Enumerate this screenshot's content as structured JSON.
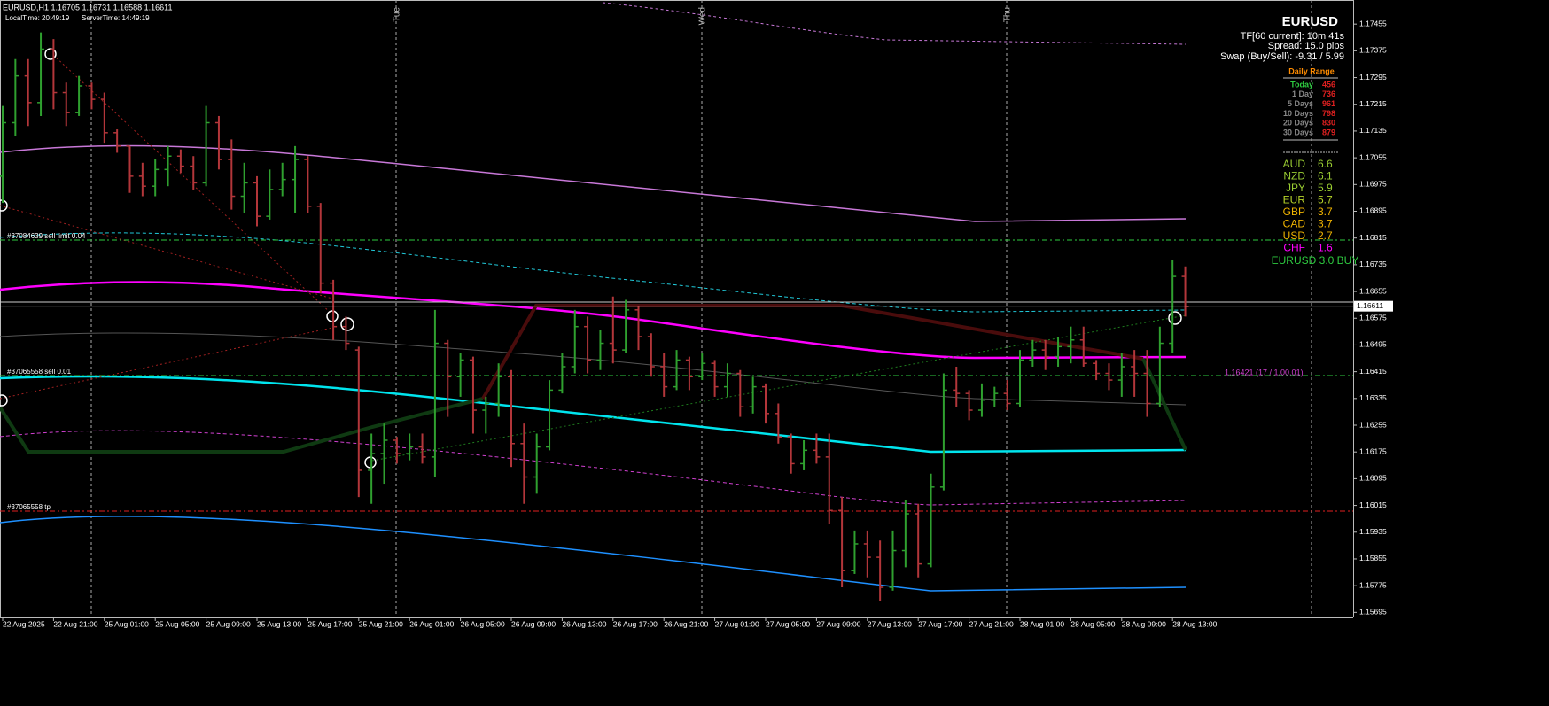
{
  "header": {
    "symbol_line": "EURUSD,H1  1.16705 1.16731 1.16588 1.16611",
    "local_time": "LocalTime: 20:49:19",
    "server_time": "ServerTime: 14:49:19"
  },
  "day_labels": [
    "Tue",
    "Wed",
    "Thu"
  ],
  "chart": {
    "type": "bar",
    "ylim": [
      1.1568,
      1.17527
    ],
    "yticks": [
      1.17455,
      1.17375,
      1.17295,
      1.17215,
      1.17135,
      1.17055,
      1.16975,
      1.16895,
      1.16815,
      1.16735,
      1.16655,
      1.16575,
      1.16495,
      1.16415,
      1.16335,
      1.16255,
      1.16175,
      1.16095,
      1.16015,
      1.15935,
      1.15855,
      1.15775,
      1.15695
    ],
    "time_labels": [
      "22 Aug 2025",
      "22 Aug 21:00",
      "25 Aug 01:00",
      "25 Aug 05:00",
      "25 Aug 09:00",
      "25 Aug 13:00",
      "25 Aug 17:00",
      "25 Aug 21:00",
      "26 Aug 01:00",
      "26 Aug 05:00",
      "26 Aug 09:00",
      "26 Aug 13:00",
      "26 Aug 17:00",
      "26 Aug 21:00",
      "27 Aug 01:00",
      "27 Aug 05:00",
      "27 Aug 09:00",
      "27 Aug 13:00",
      "27 Aug 17:00",
      "27 Aug 21:00",
      "28 Aug 01:00",
      "28 Aug 05:00",
      "28 Aug 09:00",
      "28 Aug 13:00"
    ],
    "up_color": "#2fa02f",
    "down_color": "#b3363a",
    "current_price": 1.16611,
    "bars": [
      [
        1.17,
        1.1721,
        1.1692,
        1.1716
      ],
      [
        1.1716,
        1.1735,
        1.1712,
        1.173
      ],
      [
        1.173,
        1.1735,
        1.1715,
        1.1722
      ],
      [
        1.1722,
        1.1743,
        1.1718,
        1.1738
      ],
      [
        1.1738,
        1.1741,
        1.172,
        1.1725
      ],
      [
        1.1725,
        1.1728,
        1.1715,
        1.1719
      ],
      [
        1.1719,
        1.173,
        1.1718,
        1.1727
      ],
      [
        1.1727,
        1.1728,
        1.172,
        1.1723
      ],
      [
        1.1723,
        1.1725,
        1.171,
        1.1713
      ],
      [
        1.1713,
        1.1714,
        1.1707,
        1.1709
      ],
      [
        1.1709,
        1.1709,
        1.1695,
        1.17
      ],
      [
        1.17,
        1.1704,
        1.1694,
        1.1697
      ],
      [
        1.1697,
        1.1705,
        1.1694,
        1.1702
      ],
      [
        1.1702,
        1.1709,
        1.1697,
        1.1706
      ],
      [
        1.1706,
        1.1708,
        1.1701,
        1.1703
      ],
      [
        1.1703,
        1.1706,
        1.1696,
        1.1698
      ],
      [
        1.1698,
        1.1721,
        1.1697,
        1.1716
      ],
      [
        1.1716,
        1.1718,
        1.1702,
        1.1705
      ],
      [
        1.1705,
        1.1711,
        1.169,
        1.1694
      ],
      [
        1.1694,
        1.1704,
        1.1689,
        1.1698
      ],
      [
        1.1698,
        1.17,
        1.1685,
        1.1688
      ],
      [
        1.1688,
        1.1702,
        1.1687,
        1.1696
      ],
      [
        1.1696,
        1.1704,
        1.1694,
        1.1699
      ],
      [
        1.1699,
        1.1709,
        1.1689,
        1.1705
      ],
      [
        1.1705,
        1.1706,
        1.1689,
        1.1691
      ],
      [
        1.1691,
        1.1692,
        1.1665,
        1.1668
      ],
      [
        1.1668,
        1.1669,
        1.1651,
        1.1655
      ],
      [
        1.1655,
        1.1658,
        1.1648,
        1.165
      ],
      [
        1.1648,
        1.1649,
        1.1604,
        1.1612
      ],
      [
        1.1612,
        1.1623,
        1.1602,
        1.1617
      ],
      [
        1.1617,
        1.1626,
        1.1608,
        1.1621
      ],
      [
        1.1621,
        1.1622,
        1.1614,
        1.1617
      ],
      [
        1.1617,
        1.1623,
        1.1615,
        1.1619
      ],
      [
        1.1619,
        1.1623,
        1.1614,
        1.1616
      ],
      [
        1.1616,
        1.166,
        1.161,
        1.165
      ],
      [
        1.165,
        1.1651,
        1.1628,
        1.164
      ],
      [
        1.164,
        1.1647,
        1.1634,
        1.1645
      ],
      [
        1.1645,
        1.1646,
        1.1623,
        1.163
      ],
      [
        1.163,
        1.1634,
        1.1623,
        1.1632
      ],
      [
        1.1632,
        1.1644,
        1.1628,
        1.164
      ],
      [
        1.164,
        1.1642,
        1.1613,
        1.162
      ],
      [
        1.162,
        1.1626,
        1.1602,
        1.161
      ],
      [
        1.161,
        1.1623,
        1.1605,
        1.1619
      ],
      [
        1.1619,
        1.1639,
        1.1618,
        1.1636
      ],
      [
        1.1636,
        1.1647,
        1.1635,
        1.1643
      ],
      [
        1.1643,
        1.166,
        1.1641,
        1.1655
      ],
      [
        1.1655,
        1.1658,
        1.1641,
        1.1645
      ],
      [
        1.1645,
        1.1654,
        1.1642,
        1.165
      ],
      [
        1.165,
        1.1664,
        1.1644,
        1.1648
      ],
      [
        1.1648,
        1.1663,
        1.1647,
        1.166
      ],
      [
        1.166,
        1.1661,
        1.1648,
        1.1652
      ],
      [
        1.1652,
        1.1653,
        1.164,
        1.1643
      ],
      [
        1.1643,
        1.1647,
        1.1634,
        1.1637
      ],
      [
        1.1637,
        1.1648,
        1.1636,
        1.1645
      ],
      [
        1.1645,
        1.1646,
        1.1636,
        1.164
      ],
      [
        1.164,
        1.1647,
        1.1639,
        1.1644
      ],
      [
        1.1644,
        1.1645,
        1.1634,
        1.1637
      ],
      [
        1.1637,
        1.1644,
        1.1634,
        1.1641
      ],
      [
        1.1641,
        1.1642,
        1.1628,
        1.1631
      ],
      [
        1.1631,
        1.164,
        1.1629,
        1.1637
      ],
      [
        1.1637,
        1.1638,
        1.1626,
        1.1629
      ],
      [
        1.1629,
        1.1632,
        1.162,
        1.1622
      ],
      [
        1.1622,
        1.1623,
        1.1611,
        1.1614
      ],
      [
        1.1614,
        1.1621,
        1.1612,
        1.1618
      ],
      [
        1.1618,
        1.1623,
        1.1614,
        1.1616
      ],
      [
        1.1616,
        1.1623,
        1.1596,
        1.16
      ],
      [
        1.16,
        1.1604,
        1.1577,
        1.1582
      ],
      [
        1.1582,
        1.1594,
        1.1581,
        1.159
      ],
      [
        1.159,
        1.1594,
        1.158,
        1.1586
      ],
      [
        1.1586,
        1.1591,
        1.1573,
        1.1577
      ],
      [
        1.1577,
        1.1594,
        1.1576,
        1.1588
      ],
      [
        1.1588,
        1.1603,
        1.1583,
        1.1599
      ],
      [
        1.1599,
        1.1602,
        1.158,
        1.1584
      ],
      [
        1.1584,
        1.1611,
        1.1583,
        1.1607
      ],
      [
        1.1607,
        1.1641,
        1.1606,
        1.1636
      ],
      [
        1.1636,
        1.1643,
        1.1631,
        1.1635
      ],
      [
        1.1635,
        1.1636,
        1.1627,
        1.163
      ],
      [
        1.163,
        1.1638,
        1.1628,
        1.1633
      ],
      [
        1.1633,
        1.1637,
        1.1631,
        1.1635
      ],
      [
        1.1635,
        1.1639,
        1.163,
        1.1632
      ],
      [
        1.1632,
        1.1648,
        1.1631,
        1.1645
      ],
      [
        1.1645,
        1.1651,
        1.1643,
        1.1648
      ],
      [
        1.1648,
        1.1651,
        1.1642,
        1.1646
      ],
      [
        1.1646,
        1.1652,
        1.1643,
        1.1649
      ],
      [
        1.1649,
        1.1655,
        1.1644,
        1.1651
      ],
      [
        1.1651,
        1.1655,
        1.1643,
        1.1644
      ],
      [
        1.1644,
        1.1645,
        1.1639,
        1.1641
      ],
      [
        1.1641,
        1.1644,
        1.1636,
        1.1639
      ],
      [
        1.1639,
        1.1647,
        1.1634,
        1.1643
      ],
      [
        1.1643,
        1.1648,
        1.1634,
        1.1641
      ],
      [
        1.1641,
        1.1648,
        1.1628,
        1.1632
      ],
      [
        1.1632,
        1.1655,
        1.1631,
        1.165
      ],
      [
        1.165,
        1.1675,
        1.1647,
        1.167
      ],
      [
        1.167,
        1.1673,
        1.1658,
        1.1661
      ]
    ]
  },
  "orders": [
    "#37084639 sell limit 0.04",
    "#37065558 sell 0.01",
    "#37065558 tp"
  ],
  "order_note": "1.16421 (17 / 1.00.01)",
  "info": {
    "symbol": "EURUSD",
    "timeframe": "TF[60 current]: 10m 41s",
    "spread": "Spread: 15.0 pips",
    "swap": "Swap (Buy/Sell): -9.31 / 5.99"
  },
  "daily_range": {
    "title": "Daily Range",
    "rows": [
      [
        "Today",
        456
      ],
      [
        "1 Day",
        736
      ],
      [
        "5 Days",
        961
      ],
      [
        "10 Days",
        798
      ],
      [
        "20 Days",
        830
      ],
      [
        "30 Days",
        879
      ]
    ]
  },
  "strength": {
    "rows": [
      {
        "currency": "AUD",
        "value": 6.6,
        "color": "#9acd32"
      },
      {
        "currency": "NZD",
        "value": 6.1,
        "color": "#9acd32"
      },
      {
        "currency": "JPY",
        "value": 5.9,
        "color": "#9acd32"
      },
      {
        "currency": "EUR",
        "value": 5.7,
        "color": "#b5d22a"
      },
      {
        "currency": "GBP",
        "value": 3.7,
        "color": "#f0b400"
      },
      {
        "currency": "CAD",
        "value": 3.7,
        "color": "#f0b400"
      },
      {
        "currency": "USD",
        "value": 2.7,
        "color": "#f0b400"
      },
      {
        "currency": "CHF",
        "value": 1.6,
        "color": "#ff00ff"
      }
    ],
    "signal": "EURUSD 3.0 BUY"
  }
}
